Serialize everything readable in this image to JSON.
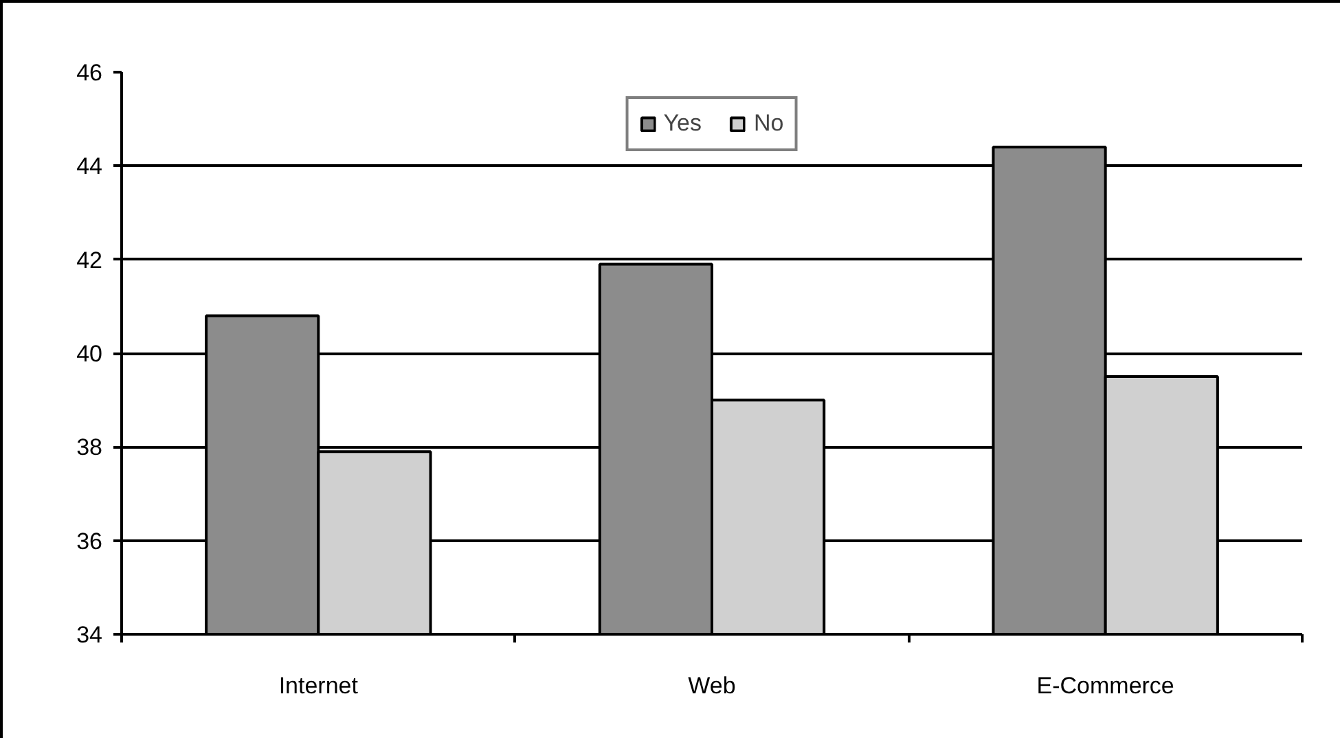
{
  "chart_data": {
    "type": "bar",
    "categories": [
      "Internet",
      "Web",
      "E-Commerce"
    ],
    "series": [
      {
        "name": "Yes",
        "color": "#8c8c8c",
        "values": [
          40.8,
          41.9,
          44.4
        ]
      },
      {
        "name": "No",
        "color": "#d0d0d0",
        "values": [
          37.9,
          39.0,
          39.5
        ]
      }
    ],
    "ylim": [
      34,
      46
    ],
    "yticks": [
      34,
      36,
      38,
      40,
      42,
      44,
      46
    ],
    "grid": "y",
    "legend": "top"
  }
}
